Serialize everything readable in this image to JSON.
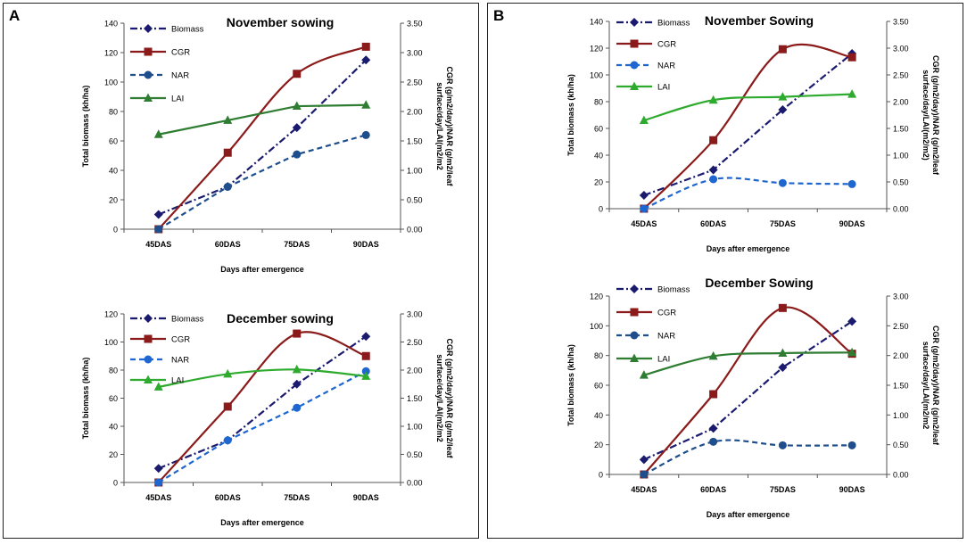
{
  "panels": [
    {
      "letter": "A",
      "charts": [
        {
          "title": "November sowing",
          "xlabel": "Days after emergence",
          "ylabel_left": "Total biomass (kh/ha)",
          "ylabel_right_1": "CGR (g/m2/day)/NAR (g/m2/leaf",
          "ylabel_right_2": "surface/day/LAI(m2/m2",
          "categories": [
            "45DAS",
            "60DAS",
            "75DAS",
            "90DAS"
          ],
          "left_ticks": [
            "0",
            "20",
            "40",
            "60",
            "80",
            "100",
            "120",
            "140"
          ],
          "right_ticks": [
            "0.00",
            "0.50",
            "1.00",
            "1.50",
            "2.00",
            "2.50",
            "3.00",
            "3.50"
          ]
        },
        {
          "title": "December sowing",
          "xlabel": "Days after emergence",
          "ylabel_left": "Total biomass (kh/ha)",
          "ylabel_right_1": "CGR (g/m2/day)/NAR (g/m2/leaf",
          "ylabel_right_2": "surface/day/LAI(m2/m2",
          "categories": [
            "45DAS",
            "60DAS",
            "75DAS",
            "90DAS"
          ],
          "left_ticks": [
            "0",
            "20",
            "40",
            "60",
            "80",
            "100",
            "120"
          ],
          "right_ticks": [
            "0.00",
            "0.50",
            "1.00",
            "1.50",
            "2.00",
            "2.50",
            "3.00"
          ]
        }
      ]
    },
    {
      "letter": "B",
      "charts": [
        {
          "title": "November Sowing",
          "xlabel": "Days after emergence",
          "ylabel_left": "Total biomass (kh/ha)",
          "ylabel_right_1": "CGR (g/m2/day)/NAR (g/m2/leaf",
          "ylabel_right_2": "surface/day/LAI(m2/m2)",
          "categories": [
            "45DAS",
            "60DAS",
            "75DAS",
            "90DAS"
          ],
          "left_ticks": [
            "0",
            "20",
            "40",
            "60",
            "80",
            "100",
            "120",
            "140"
          ],
          "right_ticks": [
            "0.00",
            "0.50",
            "1.00",
            "1.50",
            "2.00",
            "2.50",
            "3.00",
            "3.50"
          ]
        },
        {
          "title": "December Sowing",
          "xlabel": "Days after emergence",
          "ylabel_left": "Total biomass (kh/ha)",
          "ylabel_right_1": "CGR (g/m2/day)/NAR (g/m2/leaf",
          "ylabel_right_2": "surface/day/LAI(m2/m2",
          "categories": [
            "45DAS",
            "60DAS",
            "75DAS",
            "90DAS"
          ],
          "left_ticks": [
            "0",
            "20",
            "40",
            "60",
            "80",
            "100",
            "120"
          ],
          "right_ticks": [
            "0.00",
            "0.50",
            "1.00",
            "1.50",
            "2.00",
            "2.50",
            "3.00"
          ]
        }
      ]
    }
  ],
  "chart_data": [
    {
      "panel": "A",
      "type": "line",
      "title": "November sowing",
      "xlabel": "Days after emergence",
      "ylabel": "Total biomass (kh/ha)",
      "y2label": "CGR (g/m2/day)/NAR (g/m2/leaf surface/day/LAI(m2/m2",
      "categories": [
        "45DAS",
        "60DAS",
        "75DAS",
        "90DAS"
      ],
      "ylim": [
        0,
        140
      ],
      "y2lim": [
        0,
        3.5
      ],
      "legend": "top-left",
      "series": [
        {
          "name": "Biomass",
          "axis": "left",
          "values": [
            10,
            29,
            69,
            115
          ],
          "color": "#1a1a6e",
          "style": "dashdot",
          "marker": "diamond",
          "smooth": false
        },
        {
          "name": "CGR",
          "axis": "right",
          "values": [
            0.0,
            1.3,
            2.64,
            3.1
          ],
          "color": "#8b1a1a",
          "style": "solid",
          "marker": "square",
          "smooth": true
        },
        {
          "name": "NAR",
          "axis": "right",
          "values": [
            0.0,
            0.72,
            1.27,
            1.6
          ],
          "color": "#1f4e8c",
          "style": "dashed",
          "marker": "circle",
          "smooth": false
        },
        {
          "name": "LAI",
          "axis": "right",
          "values": [
            1.61,
            1.85,
            2.09,
            2.11
          ],
          "color": "#2e7d32",
          "style": "solid",
          "marker": "triangle",
          "smooth": false
        }
      ]
    },
    {
      "panel": "A",
      "type": "line",
      "title": "December sowing",
      "xlabel": "Days after emergence",
      "ylabel": "Total biomass (kh/ha)",
      "y2label": "CGR (g/m2/day)/NAR (g/m2/leaf surface/day/LAI(m2/m2",
      "categories": [
        "45DAS",
        "60DAS",
        "75DAS",
        "90DAS"
      ],
      "ylim": [
        0,
        120
      ],
      "y2lim": [
        0,
        3.0
      ],
      "legend": "top-left",
      "series": [
        {
          "name": "Biomass",
          "axis": "left",
          "values": [
            10,
            30,
            70,
            104
          ],
          "color": "#1a1a6e",
          "style": "dashdot",
          "marker": "diamond",
          "smooth": false
        },
        {
          "name": "CGR",
          "axis": "right",
          "values": [
            0.0,
            1.35,
            2.65,
            2.25
          ],
          "color": "#8b1a1a",
          "style": "solid",
          "marker": "square",
          "smooth": true
        },
        {
          "name": "NAR",
          "axis": "right",
          "values": [
            0.0,
            0.75,
            1.33,
            1.98
          ],
          "color": "#1e66d0",
          "style": "dashed",
          "marker": "circle",
          "smooth": false
        },
        {
          "name": "LAI",
          "axis": "right",
          "values": [
            1.7,
            1.93,
            2.01,
            1.89
          ],
          "color": "#2eaa2e",
          "style": "solid",
          "marker": "triangle",
          "smooth": true
        }
      ]
    },
    {
      "panel": "B",
      "type": "line",
      "title": "November Sowing",
      "xlabel": "Days after emergence",
      "ylabel": "Total biomass (kh/ha)",
      "y2label": "CGR (g/m2/day)/NAR (g/m2/leaf surface/day/LAI(m2/m2)",
      "categories": [
        "45DAS",
        "60DAS",
        "75DAS",
        "90DAS"
      ],
      "ylim": [
        0,
        140
      ],
      "y2lim": [
        0,
        3.5
      ],
      "legend": "top-left",
      "series": [
        {
          "name": "Biomass",
          "axis": "left",
          "values": [
            10,
            29,
            74,
            116
          ],
          "color": "#1a1a6e",
          "style": "dashdot",
          "marker": "diamond",
          "smooth": false
        },
        {
          "name": "CGR",
          "axis": "right",
          "values": [
            0.0,
            1.28,
            2.98,
            2.83
          ],
          "color": "#8b1a1a",
          "style": "solid",
          "marker": "square",
          "smooth": true
        },
        {
          "name": "NAR",
          "axis": "right",
          "values": [
            0.0,
            0.55,
            0.48,
            0.46
          ],
          "color": "#1e66d0",
          "style": "dashed",
          "marker": "circle",
          "smooth": true
        },
        {
          "name": "LAI",
          "axis": "right",
          "values": [
            1.65,
            2.03,
            2.09,
            2.14
          ],
          "color": "#2eaa2e",
          "style": "solid",
          "marker": "triangle",
          "smooth": true
        }
      ]
    },
    {
      "panel": "B",
      "type": "line",
      "title": "December Sowing",
      "xlabel": "Days after emergence",
      "ylabel": "Total biomass (kh/ha)",
      "y2label": "CGR (g/m2/day)/NAR (g/m2/leaf surface/day/LAI(m2/m2",
      "categories": [
        "45DAS",
        "60DAS",
        "75DAS",
        "90DAS"
      ],
      "ylim": [
        0,
        120
      ],
      "y2lim": [
        0,
        3.0
      ],
      "legend": "top-left",
      "series": [
        {
          "name": "Biomass",
          "axis": "left",
          "values": [
            10,
            31,
            72,
            103
          ],
          "color": "#1a1a6e",
          "style": "dashdot",
          "marker": "diamond",
          "smooth": false
        },
        {
          "name": "CGR",
          "axis": "right",
          "values": [
            0.0,
            1.35,
            2.8,
            2.03
          ],
          "color": "#8b1a1a",
          "style": "solid",
          "marker": "square",
          "smooth": true
        },
        {
          "name": "NAR",
          "axis": "right",
          "values": [
            0.0,
            0.55,
            0.49,
            0.49
          ],
          "color": "#1f4e8c",
          "style": "dashed",
          "marker": "circle",
          "smooth": true
        },
        {
          "name": "LAI",
          "axis": "right",
          "values": [
            1.67,
            1.99,
            2.04,
            2.05
          ],
          "color": "#2e7d32",
          "style": "solid",
          "marker": "triangle",
          "smooth": true
        }
      ]
    }
  ]
}
